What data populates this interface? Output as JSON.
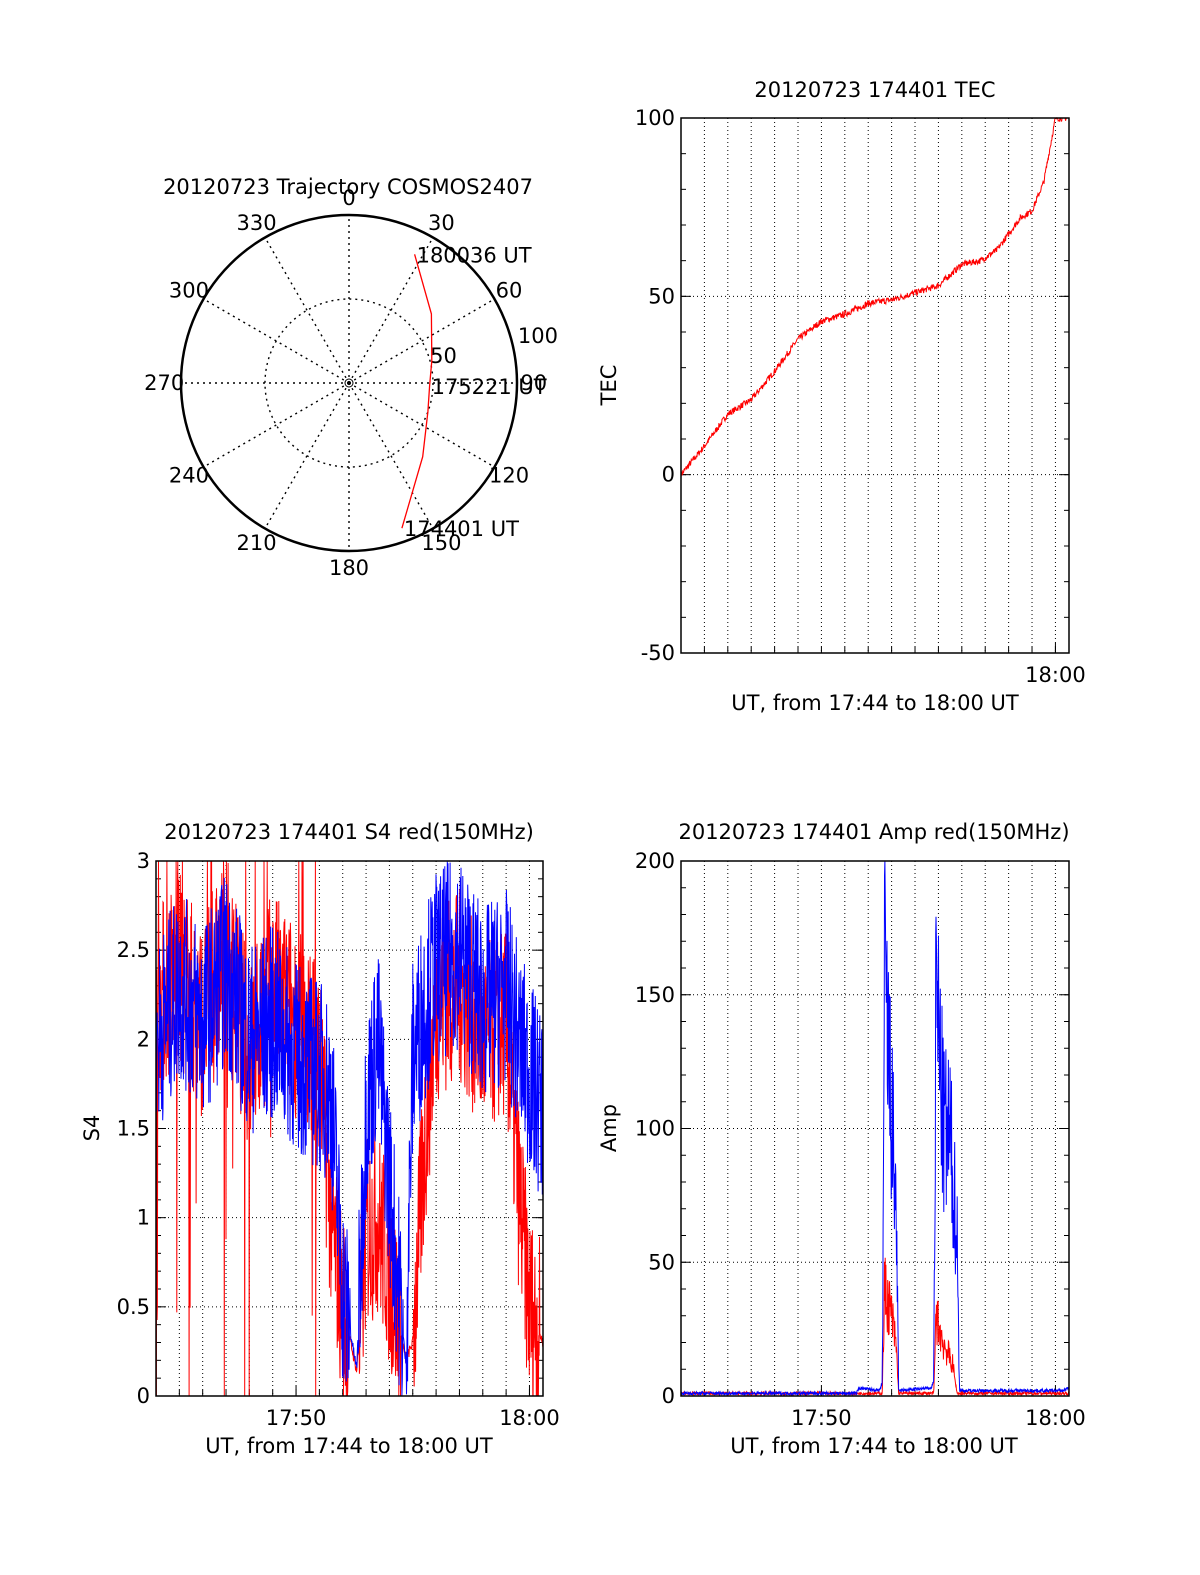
{
  "colors": {
    "red": "#ff0000",
    "blue": "#0000ff",
    "axis": "#000000"
  },
  "chart_data": [
    {
      "id": "trajectory",
      "type": "polar",
      "title": "20120723 Trajectory COSMOS2407",
      "angle_labels": [
        "0",
        "30",
        "60",
        "90",
        "120",
        "150",
        "180",
        "210",
        "240",
        "270",
        "300",
        "330"
      ],
      "radius_labels": [
        "50",
        "100"
      ],
      "radius_max": 100,
      "series": [
        {
          "color": "red",
          "points": [
            {
              "az": 160,
              "r": 92
            },
            {
              "az": 135,
              "r": 62
            },
            {
              "az": 110,
              "r": 50
            },
            {
              "az": 92,
              "r": 48
            },
            {
              "az": 75,
              "r": 51
            },
            {
              "az": 50,
              "r": 64
            },
            {
              "az": 27,
              "r": 86
            }
          ]
        }
      ],
      "annotations": [
        {
          "text": "180036 UT",
          "az": 27,
          "r": 86
        },
        {
          "text": "175221 UT",
          "az": 92,
          "r": 48
        },
        {
          "text": "174401 UT",
          "az": 160,
          "r": 92
        }
      ]
    },
    {
      "id": "tec",
      "type": "line",
      "title": "20120723 174401 TEC",
      "ylabel": "TEC",
      "xlabel": "UT, from 17:44 to 18:00 UT",
      "xlim": [
        0,
        16.58
      ],
      "ylim": [
        -50,
        100
      ],
      "yticks": [
        -50,
        0,
        50,
        100
      ],
      "xtick_labels": [
        {
          "x": 16,
          "label": "18:00"
        }
      ],
      "grid": true,
      "series": [
        {
          "color": "red",
          "x": [
            0,
            1,
            2,
            3,
            4,
            5,
            6,
            7,
            8,
            9,
            10,
            11,
            12,
            12.8,
            13.5,
            14.5,
            15,
            15.5,
            16
          ],
          "y": [
            0,
            8,
            17,
            21,
            29,
            38,
            43,
            45,
            48,
            49,
            51,
            53,
            59,
            60,
            63,
            72,
            74,
            82,
            100
          ]
        }
      ]
    },
    {
      "id": "s4",
      "type": "line",
      "title": "20120723 174401 S4 red(150MHz)",
      "ylabel": "S4",
      "xlabel": "UT, from 17:44 to 18:00 UT",
      "xlim": [
        0,
        16.58
      ],
      "ylim": [
        0,
        3
      ],
      "yticks": [
        0,
        0.5,
        1,
        1.5,
        2,
        2.5,
        3
      ],
      "xtick_labels": [
        {
          "x": 6,
          "label": "17:50"
        },
        {
          "x": 16,
          "label": "18:00"
        }
      ],
      "grid": true,
      "series": [
        {
          "color": "red",
          "x": [
            0,
            1,
            2,
            3,
            4,
            5,
            6,
            7,
            7.5,
            8,
            8.6,
            9,
            9.5,
            10,
            10.7,
            11,
            11.5,
            12,
            13,
            14,
            15,
            15.5,
            16,
            16.58
          ],
          "y": [
            2.2,
            2.4,
            2.1,
            2.5,
            1.9,
            2.3,
            2.1,
            1.9,
            1.0,
            0.5,
            0.14,
            0.9,
            1.0,
            0.7,
            0.2,
            0.3,
            1.4,
            2.2,
            2.3,
            2.0,
            2.1,
            1.2,
            0.5,
            0.3
          ]
        },
        {
          "color": "blue",
          "x": [
            0,
            1,
            2,
            3,
            4,
            5,
            6,
            7,
            7.5,
            8,
            8.6,
            9,
            9.5,
            10,
            10.7,
            11,
            11.5,
            12,
            13,
            14,
            15,
            15.5,
            16,
            16.58
          ],
          "y": [
            2.0,
            2.3,
            2.1,
            2.4,
            2.0,
            2.1,
            1.9,
            1.8,
            1.7,
            0.6,
            0.15,
            1.6,
            2.0,
            1.2,
            0.18,
            1.9,
            2.2,
            2.4,
            2.5,
            2.2,
            2.3,
            2.0,
            1.8,
            1.6
          ]
        }
      ]
    },
    {
      "id": "amp",
      "type": "line",
      "title": "20120723 174401 Amp red(150MHz)",
      "ylabel": "Amp",
      "xlabel": "UT, from 17:44 to 18:00 UT",
      "xlim": [
        0,
        16.58
      ],
      "ylim": [
        0,
        200
      ],
      "yticks": [
        0,
        50,
        100,
        150,
        200
      ],
      "xtick_labels": [
        {
          "x": 6,
          "label": "17:50"
        },
        {
          "x": 16,
          "label": "18:00"
        }
      ],
      "grid": true,
      "series": [
        {
          "color": "red",
          "x": [
            0,
            8.6,
            8.7,
            9.0,
            9.2,
            9.3,
            10.8,
            10.9,
            11.2,
            11.6,
            11.8,
            16.58
          ],
          "y": [
            1,
            1,
            40,
            30,
            18,
            1,
            1,
            30,
            20,
            12,
            1,
            1
          ]
        },
        {
          "color": "blue",
          "x": [
            0,
            7.5,
            7.6,
            8.5,
            8.6,
            8.7,
            8.9,
            9.2,
            9.3,
            10.7,
            10.8,
            10.9,
            11.2,
            11.5,
            11.8,
            11.9,
            16.3,
            16.58
          ],
          "y": [
            1,
            1,
            3,
            2,
            5,
            157,
            120,
            70,
            2,
            3,
            6,
            156,
            100,
            95,
            60,
            2,
            2,
            3
          ]
        }
      ]
    }
  ]
}
